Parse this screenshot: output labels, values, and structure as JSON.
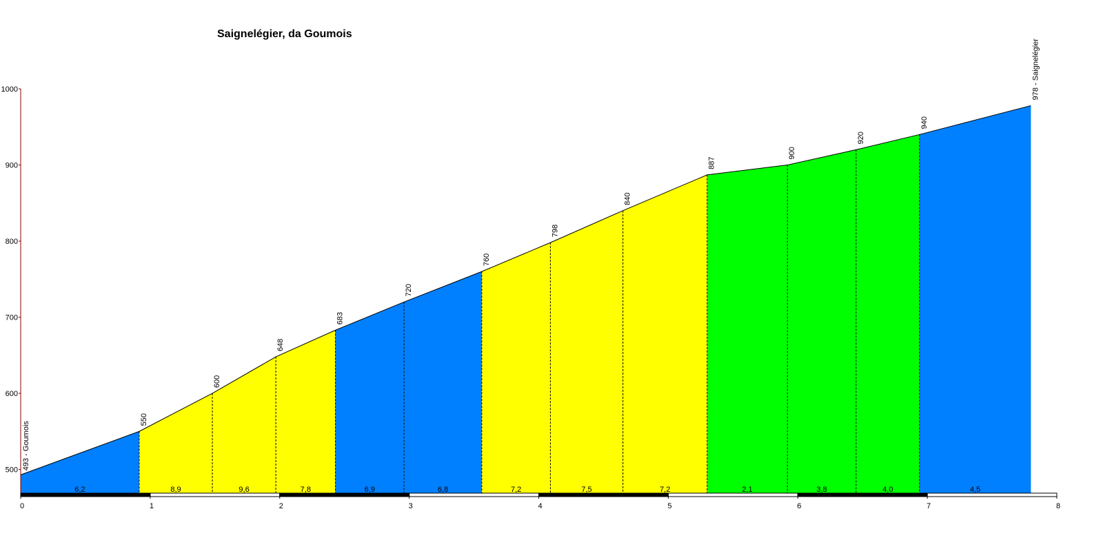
{
  "chart_data": {
    "type": "elevation-profile",
    "title": "Saignelégier, da Goumois",
    "x": [
      0,
      0.915,
      1.48,
      1.97,
      2.43,
      2.96,
      3.56,
      4.09,
      4.65,
      5.3,
      5.92,
      6.45,
      6.94,
      7.8
    ],
    "values": [
      493,
      550,
      600,
      648,
      683,
      720,
      760,
      798,
      840,
      887,
      900,
      920,
      940,
      978
    ],
    "value_labels": [
      "493 - Goumois",
      "550",
      "600",
      "648",
      "683",
      "720",
      "760",
      "798",
      "840",
      "887",
      "900",
      "920",
      "940",
      "978 - Saignelégier"
    ],
    "segments": {
      "values": [
        6.2,
        8.9,
        9.6,
        7.8,
        6.9,
        6.8,
        7.2,
        7.5,
        7.2,
        2.1,
        3.8,
        4.0,
        4.5
      ],
      "value_labels": [
        "6,2",
        "8,9",
        "9,6",
        "7,8",
        "6,9",
        "6,8",
        "7,2",
        "7,5",
        "7,2",
        "2,1",
        "3,8",
        "4,0",
        "4,5"
      ],
      "colors": [
        "#0080ff",
        "#ffff00",
        "#ffff00",
        "#ffff00",
        "#0080ff",
        "#0080ff",
        "#ffff00",
        "#ffff00",
        "#ffff00",
        "#00ff00",
        "#00ff00",
        "#00ff00",
        "#0080ff"
      ]
    },
    "xlim": [
      0,
      8
    ],
    "xticks": [
      0,
      1,
      2,
      3,
      4,
      5,
      6,
      7,
      8
    ],
    "ylim": [
      468,
      1000
    ],
    "yticks": [
      500,
      600,
      700,
      800,
      900,
      1000
    ]
  }
}
